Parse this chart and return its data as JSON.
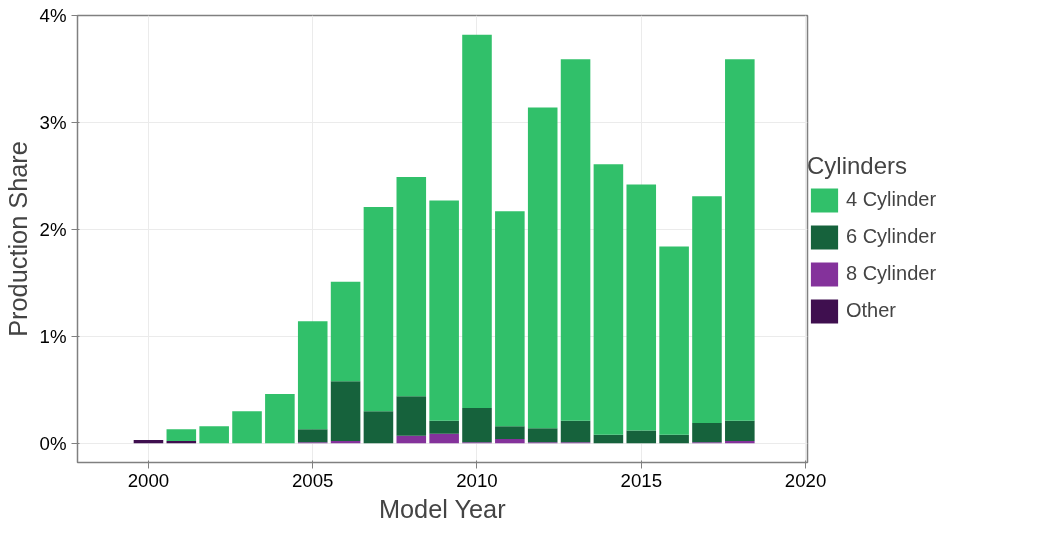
{
  "chart_data": {
    "type": "bar",
    "stacked": true,
    "xlabel": "Model Year",
    "ylabel": "Production Share",
    "legend_title": "Cylinders",
    "legend": "right",
    "grid": true,
    "x": [
      2000,
      2001,
      2002,
      2003,
      2004,
      2005,
      2006,
      2007,
      2008,
      2009,
      2010,
      2011,
      2012,
      2013,
      2014,
      2015,
      2016,
      2017,
      2018
    ],
    "series": [
      {
        "name": "Other",
        "color": "#3f0f4f",
        "values": [
          0.03,
          0.02,
          0,
          0,
          0,
          0,
          0,
          0,
          0,
          0,
          0,
          0,
          0,
          0,
          0,
          0,
          0,
          0,
          0
        ]
      },
      {
        "name": "8 Cylinder",
        "color": "#84329b",
        "values": [
          0,
          0,
          0,
          0,
          0,
          0.01,
          0.02,
          0,
          0.07,
          0.09,
          0.01,
          0.04,
          0.01,
          0.01,
          0,
          0,
          0,
          0.01,
          0.02
        ]
      },
      {
        "name": "6 Cylinder",
        "color": "#16623c",
        "values": [
          0,
          0,
          0,
          0,
          0,
          0.12,
          0.56,
          0.3,
          0.37,
          0.12,
          0.32,
          0.12,
          0.13,
          0.2,
          0.08,
          0.12,
          0.08,
          0.18,
          0.19
        ]
      },
      {
        "name": "4 Cylinder",
        "color": "#31c06a",
        "values": [
          0,
          0.11,
          0.16,
          0.3,
          0.46,
          1.01,
          0.93,
          1.91,
          2.05,
          2.06,
          3.49,
          2.01,
          3.0,
          3.38,
          2.53,
          2.3,
          1.76,
          2.12,
          3.38
        ]
      }
    ],
    "xlim": [
      1997.84,
      2020.06
    ],
    "xticks": [
      2000,
      2005,
      2010,
      2015,
      2020
    ],
    "ylim": [
      -0.18,
      4.0
    ],
    "yticks": [
      {
        "value": 0,
        "label": "0%"
      },
      {
        "value": 1,
        "label": "1%"
      },
      {
        "value": 2,
        "label": "2%"
      },
      {
        "value": 3,
        "label": "3%"
      },
      {
        "value": 4,
        "label": "4%"
      }
    ]
  }
}
